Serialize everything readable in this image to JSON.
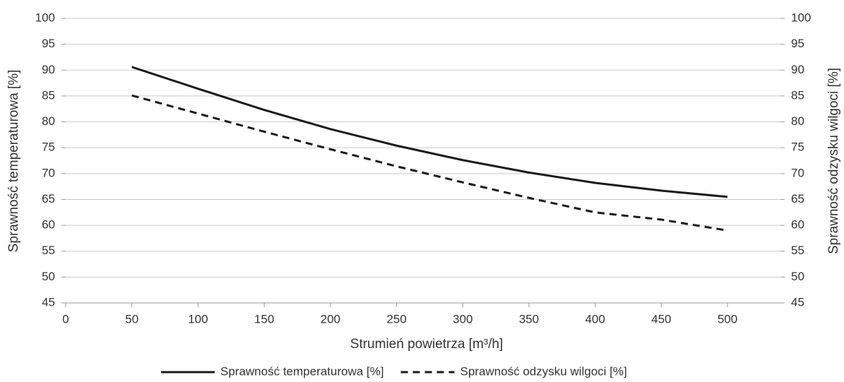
{
  "chart_data": {
    "type": "line",
    "x_label": "Strumień powietrza [m³/h]",
    "y_label": "Sprawność temperaturowa [%]",
    "y2_label": "Sprawność odzysku wilgoci [%]",
    "x": [
      50,
      100,
      150,
      200,
      250,
      300,
      350,
      400,
      450,
      500
    ],
    "series": [
      {
        "name": "Sprawność temperaturowa [%]",
        "color": "#1a1a1a",
        "dash": false,
        "values": [
          90.6,
          86.4,
          82.3,
          78.6,
          75.4,
          72.6,
          70.2,
          68.2,
          66.7,
          65.5
        ]
      },
      {
        "name": "Sprawność odzysku wilgoci [%]",
        "color": "#1a1a1a",
        "dash": true,
        "axis": "y2",
        "values": [
          85.1,
          81.6,
          78.1,
          74.7,
          71.4,
          68.3,
          65.3,
          62.5,
          61.1,
          59.0
        ]
      }
    ],
    "xlim": [
      0,
      540
    ],
    "xticks": [
      0,
      50,
      100,
      150,
      200,
      250,
      300,
      350,
      400,
      450,
      500
    ],
    "ylim": [
      45,
      100
    ],
    "yticks": [
      45,
      50,
      55,
      60,
      65,
      70,
      75,
      80,
      85,
      90,
      95,
      100
    ],
    "y2lim": [
      45,
      100
    ],
    "y2ticks": [
      45,
      50,
      55,
      60,
      65,
      70,
      75,
      80,
      85,
      90,
      95,
      100
    ],
    "grid": true,
    "legend": "bottom"
  }
}
